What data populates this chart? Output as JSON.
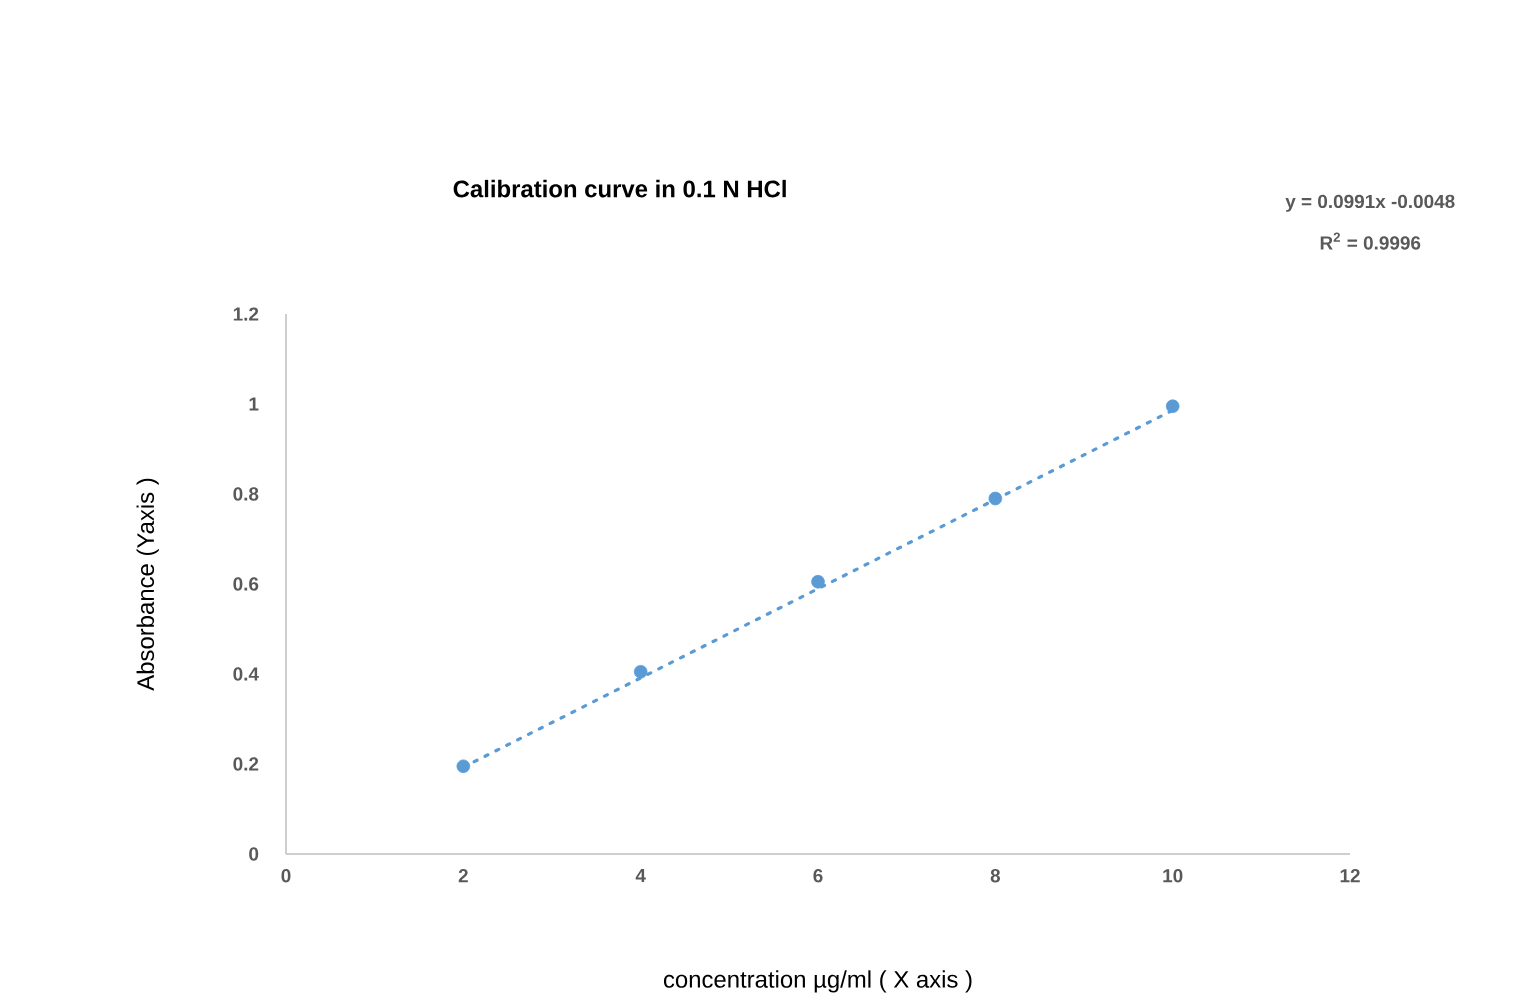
{
  "chart_data": {
    "type": "scatter",
    "title": "Calibration curve in 0.1 N HCl",
    "xlabel": "concentration µg/ml ( X axis )",
    "ylabel": "Absorbance  (Yaxis )",
    "annotations": [
      "y = 0.0991x -0.0048",
      "R$^{2}$ = 0.9996"
    ],
    "xlim": [
      0,
      12
    ],
    "ylim": [
      0,
      1.2
    ],
    "xticks": [
      0,
      2,
      4,
      6,
      8,
      10,
      12
    ],
    "yticks": [
      0,
      0.2,
      0.4,
      0.6,
      0.8,
      1,
      1.2
    ],
    "series": [
      {
        "marker": "circle",
        "color": "#5b9bd5",
        "x": [
          2,
          4,
          6,
          8,
          10
        ],
        "values": [
          0.195,
          0.405,
          0.605,
          0.79,
          0.995
        ]
      },
      {
        "type": "line",
        "color": "#5b9bd5",
        "line_style": "dotted",
        "marker": "none",
        "x": [
          2,
          10
        ],
        "values": [
          0.193,
          0.986
        ]
      }
    ]
  }
}
